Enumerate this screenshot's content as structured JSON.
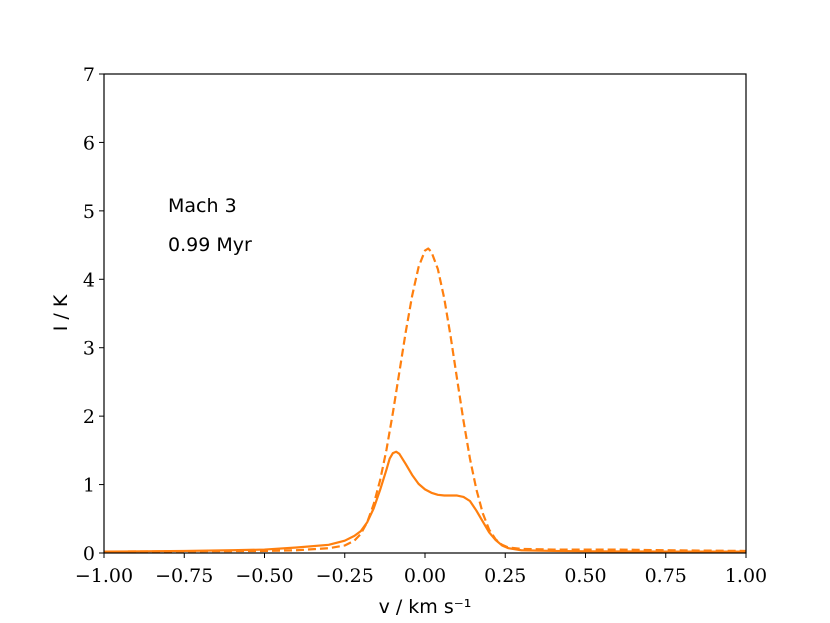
{
  "chart_data": {
    "type": "line",
    "xlabel": "v / km s⁻¹",
    "ylabel": "I / K",
    "xlim": [
      -1.0,
      1.0
    ],
    "ylim": [
      0,
      7
    ],
    "x_ticks": [
      "−1.00",
      "−0.75",
      "−0.50",
      "−0.25",
      "0.00",
      "0.25",
      "0.50",
      "0.75",
      "1.00"
    ],
    "y_ticks": [
      "0",
      "1",
      "2",
      "3",
      "4",
      "5",
      "6",
      "7"
    ],
    "grid": false,
    "annotations": [
      "Mach 3",
      "0.99 Myr"
    ],
    "color": "#ff7f0e",
    "series": [
      {
        "style": "solid",
        "points": [
          [
            -1.0,
            0.02
          ],
          [
            -0.75,
            0.03
          ],
          [
            -0.6,
            0.04
          ],
          [
            -0.5,
            0.05
          ],
          [
            -0.4,
            0.08
          ],
          [
            -0.3,
            0.12
          ],
          [
            -0.25,
            0.18
          ],
          [
            -0.22,
            0.25
          ],
          [
            -0.2,
            0.32
          ],
          [
            -0.18,
            0.45
          ],
          [
            -0.16,
            0.65
          ],
          [
            -0.14,
            0.92
          ],
          [
            -0.12,
            1.22
          ],
          [
            -0.11,
            1.38
          ],
          [
            -0.1,
            1.46
          ],
          [
            -0.09,
            1.48
          ],
          [
            -0.08,
            1.45
          ],
          [
            -0.06,
            1.3
          ],
          [
            -0.04,
            1.14
          ],
          [
            -0.02,
            1.01
          ],
          [
            0.0,
            0.93
          ],
          [
            0.02,
            0.88
          ],
          [
            0.04,
            0.85
          ],
          [
            0.06,
            0.84
          ],
          [
            0.08,
            0.84
          ],
          [
            0.1,
            0.84
          ],
          [
            0.12,
            0.82
          ],
          [
            0.14,
            0.76
          ],
          [
            0.16,
            0.62
          ],
          [
            0.18,
            0.46
          ],
          [
            0.2,
            0.3
          ],
          [
            0.22,
            0.19
          ],
          [
            0.24,
            0.11
          ],
          [
            0.26,
            0.07
          ],
          [
            0.3,
            0.04
          ],
          [
            0.4,
            0.03
          ],
          [
            0.5,
            0.025
          ],
          [
            0.75,
            0.02
          ],
          [
            1.0,
            0.02
          ]
        ]
      },
      {
        "style": "dashed",
        "points": [
          [
            -1.0,
            0.02
          ],
          [
            -0.75,
            0.025
          ],
          [
            -0.5,
            0.03
          ],
          [
            -0.4,
            0.04
          ],
          [
            -0.3,
            0.07
          ],
          [
            -0.25,
            0.11
          ],
          [
            -0.22,
            0.18
          ],
          [
            -0.2,
            0.28
          ],
          [
            -0.18,
            0.45
          ],
          [
            -0.16,
            0.71
          ],
          [
            -0.14,
            1.06
          ],
          [
            -0.12,
            1.51
          ],
          [
            -0.1,
            2.05
          ],
          [
            -0.08,
            2.64
          ],
          [
            -0.06,
            3.23
          ],
          [
            -0.04,
            3.76
          ],
          [
            -0.02,
            4.18
          ],
          [
            0.0,
            4.42
          ],
          [
            0.01,
            4.45
          ],
          [
            0.02,
            4.4
          ],
          [
            0.04,
            4.15
          ],
          [
            0.06,
            3.72
          ],
          [
            0.08,
            3.16
          ],
          [
            0.1,
            2.54
          ],
          [
            0.12,
            1.93
          ],
          [
            0.14,
            1.38
          ],
          [
            0.16,
            0.93
          ],
          [
            0.18,
            0.58
          ],
          [
            0.2,
            0.34
          ],
          [
            0.22,
            0.2
          ],
          [
            0.24,
            0.12
          ],
          [
            0.26,
            0.08
          ],
          [
            0.3,
            0.06
          ],
          [
            0.4,
            0.05
          ],
          [
            0.6,
            0.05
          ],
          [
            0.75,
            0.04
          ],
          [
            1.0,
            0.03
          ]
        ]
      }
    ]
  }
}
